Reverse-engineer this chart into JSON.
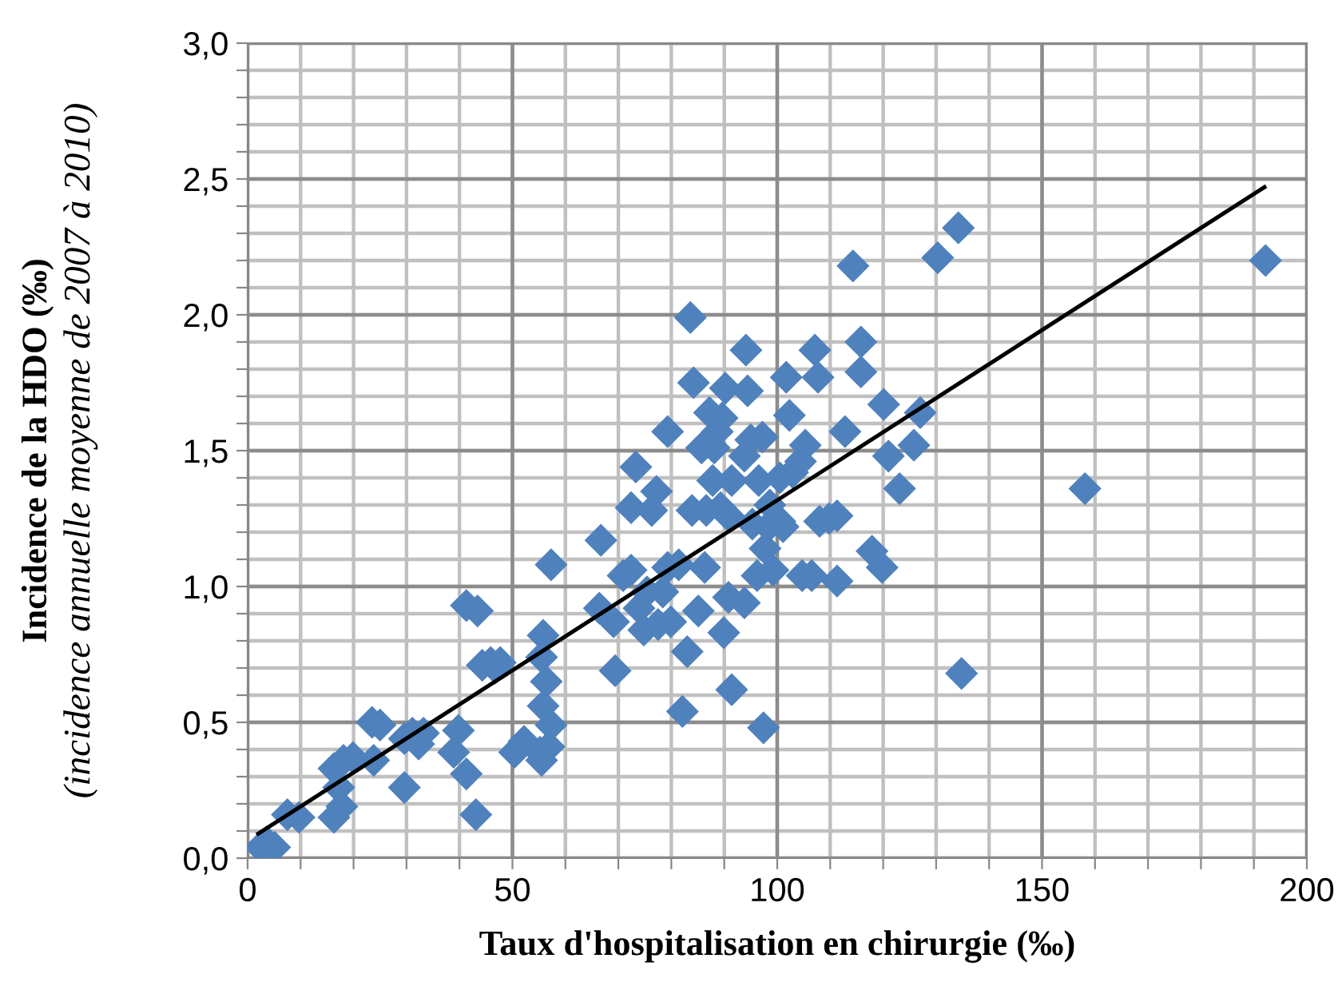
{
  "chart_data": {
    "type": "scatter",
    "xlabel": "Taux d'hospitalisation en chirurgie (‰)",
    "ylabel": "Incidence de la HDO (‰)\n(incidence annuelle moyenne de 2007 à 2010)",
    "xlim": [
      0,
      200
    ],
    "xticks": [
      0,
      {
        "value": 10,
        "label": null
      },
      {
        "value": 20,
        "label": null
      },
      {
        "value": 30,
        "label": null
      },
      {
        "value": 40,
        "label": null
      },
      50,
      {
        "value": 60,
        "label": null
      },
      {
        "value": 70,
        "label": null
      },
      {
        "value": 80,
        "label": null
      },
      {
        "value": 90,
        "label": null
      },
      100,
      {
        "value": 110,
        "label": null
      },
      {
        "value": 120,
        "label": null
      },
      {
        "value": 130,
        "label": null
      },
      {
        "value": 140,
        "label": null
      },
      150,
      {
        "value": 160,
        "label": null
      },
      {
        "value": 170,
        "label": null
      },
      {
        "value": 180,
        "label": null
      },
      {
        "value": 190,
        "label": null
      },
      200
    ],
    "ylim": [
      0,
      3
    ],
    "yticks": [
      {
        "value": 0,
        "label": "0,0"
      },
      {
        "value": 0.1,
        "label": null
      },
      {
        "value": 0.2,
        "label": null
      },
      {
        "value": 0.3,
        "label": null
      },
      {
        "value": 0.4,
        "label": null
      },
      {
        "value": 0.5,
        "label": "0,5"
      },
      {
        "value": 0.6,
        "label": null
      },
      {
        "value": 0.7,
        "label": null
      },
      {
        "value": 0.8,
        "label": null
      },
      {
        "value": 0.9,
        "label": null
      },
      {
        "value": 1.0,
        "label": "1,0"
      },
      {
        "value": 1.1,
        "label": null
      },
      {
        "value": 1.2,
        "label": null
      },
      {
        "value": 1.3,
        "label": null
      },
      {
        "value": 1.4,
        "label": null
      },
      {
        "value": 1.5,
        "label": "1,5"
      },
      {
        "value": 1.6,
        "label": null
      },
      {
        "value": 1.7,
        "label": null
      },
      {
        "value": 1.8,
        "label": null
      },
      {
        "value": 1.9,
        "label": null
      },
      {
        "value": 2.0,
        "label": "2,0"
      },
      {
        "value": 2.1,
        "label": null
      },
      {
        "value": 2.2,
        "label": null
      },
      {
        "value": 2.3,
        "label": null
      },
      {
        "value": 2.4,
        "label": null
      },
      {
        "value": 2.5,
        "label": "2,5"
      },
      {
        "value": 2.6,
        "label": null
      },
      {
        "value": 2.7,
        "label": null
      },
      {
        "value": 2.8,
        "label": null
      },
      {
        "value": 2.9,
        "label": null
      },
      {
        "value": 3.0,
        "label": "3,0"
      }
    ],
    "grid": true,
    "series": [
      {
        "color": "#4f81bd",
        "marker": "diamond",
        "x": [
          2.4,
          3.6,
          5.1,
          7.5,
          9.7,
          16.3,
          17.8,
          17.2,
          16.3,
          18.1,
          19.9,
          23.5,
          25.0,
          23.8,
          29.6,
          29.6,
          32.3,
          33.2,
          31.1,
          38.9,
          39.8,
          41.3,
          43.1,
          41.3,
          43.4,
          44.3,
          45.9,
          46.8,
          47.7,
          50.4,
          52.2,
          55.2,
          55.5,
          55.8,
          55.8,
          55.5,
          56.9,
          56.4,
          57.3,
          57.3,
          66.7,
          66.4,
          69.1,
          69.4,
          70.9,
          72.4,
          72.4,
          73.3,
          73.9,
          74.8,
          75.4,
          76.3,
          77.2,
          77.5,
          78.4,
          79.3,
          79.3,
          79.9,
          81.4,
          82.1,
          83.0,
          83.6,
          83.9,
          84.2,
          85.1,
          85.7,
          86.3,
          86.6,
          87.2,
          87.8,
          88.1,
          88.7,
          89.3,
          89.6,
          89.9,
          90.2,
          90.8,
          90.8,
          91.4,
          91.4,
          93.8,
          93.8,
          94.1,
          94.4,
          95.0,
          95.3,
          96.2,
          96.5,
          97.2,
          97.4,
          97.7,
          98.3,
          98.6,
          99.2,
          100.5,
          100.5,
          101.1,
          101.7,
          102.3,
          102.9,
          104.4,
          104.7,
          105.3,
          106.5,
          107.1,
          107.7,
          108.0,
          109.8,
          111.3,
          111.3,
          112.8,
          114.3,
          115.8,
          115.8,
          117.9,
          119.8,
          120.1,
          121.0,
          123.1,
          125.8,
          127.0,
          130.3,
          134.2,
          134.8,
          158.1,
          192.2
        ],
        "values": [
          0.04,
          0.06,
          0.04,
          0.16,
          0.15,
          0.15,
          0.19,
          0.26,
          0.33,
          0.36,
          0.37,
          0.5,
          0.49,
          0.36,
          0.26,
          0.44,
          0.42,
          0.46,
          0.46,
          0.39,
          0.47,
          0.31,
          0.16,
          0.93,
          0.91,
          0.71,
          0.72,
          0.7,
          0.72,
          0.39,
          0.43,
          0.39,
          0.36,
          0.56,
          0.82,
          0.74,
          0.41,
          0.65,
          0.49,
          1.08,
          1.17,
          0.92,
          0.87,
          0.69,
          1.04,
          1.06,
          1.29,
          1.44,
          0.92,
          0.84,
          0.98,
          1.28,
          1.35,
          0.86,
          0.98,
          1.07,
          1.57,
          0.87,
          1.08,
          0.54,
          0.76,
          1.99,
          1.28,
          1.75,
          0.91,
          1.51,
          1.07,
          1.28,
          1.64,
          1.39,
          1.51,
          1.57,
          1.29,
          1.62,
          0.83,
          1.73,
          0.96,
          1.26,
          0.62,
          1.39,
          1.48,
          0.94,
          1.87,
          1.72,
          1.54,
          1.23,
          1.04,
          1.39,
          1.55,
          0.48,
          1.14,
          1.22,
          1.3,
          1.06,
          1.4,
          1.24,
          1.22,
          1.77,
          1.63,
          1.42,
          1.46,
          1.04,
          1.52,
          1.04,
          1.87,
          1.77,
          1.24,
          1.25,
          1.26,
          1.02,
          1.57,
          2.18,
          1.9,
          1.79,
          1.13,
          1.07,
          1.67,
          1.48,
          1.36,
          1.52,
          1.64,
          2.21,
          2.32,
          0.68,
          1.36,
          2.2
        ]
      },
      {
        "type": "line",
        "color": "#000000",
        "marker": "none",
        "line_style": "solid",
        "x": [
          2,
          192
        ],
        "values": [
          0.09,
          2.47
        ]
      }
    ]
  }
}
